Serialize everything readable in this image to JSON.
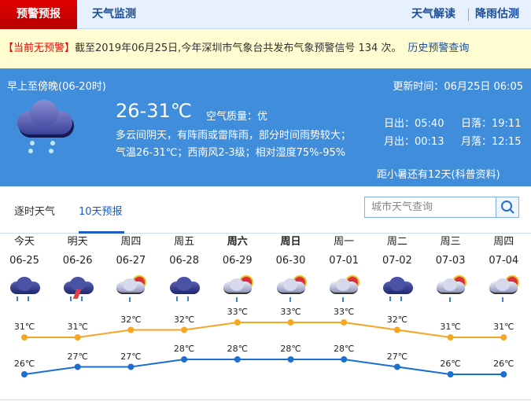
{
  "topbar": {
    "tab_active": "预警预报",
    "tab2": "天气监测",
    "link1": "天气解读",
    "link2": "降雨估测"
  },
  "warning": {
    "status": "【当前无预警】",
    "text": "截至2019年06月25日,今年深圳市气象台共发布气象预警信号 134 次。",
    "history_link": "历史预警查询"
  },
  "current": {
    "period": "早上至傍晚(06-20时)",
    "updated": "更新时间：06月25日 06:05",
    "temp": "26-31℃",
    "air_quality": "空气质量：优",
    "desc1": "多云间阴天，有阵雨或雷阵雨，部分时间雨势较大；",
    "desc2": "气温26-31℃；西南风2-3级；相对湿度75%-95%",
    "sunrise": "日出：05:40",
    "sunset": "日落：19:11",
    "moonrise": "月出：00:13",
    "moonset": "月落：12:15",
    "solar_term": "距小暑还有12天(科普资料)",
    "icon": "rain-cloud-icon"
  },
  "tabs": [
    {
      "label": "逐时天气"
    },
    {
      "label": "10天预报",
      "active": true
    }
  ],
  "search": {
    "placeholder": "城市天气查询",
    "icon": "search-icon"
  },
  "colors": {
    "high": "#f5a623",
    "low": "#1a6fd0",
    "panel": "#3f8ddb",
    "warn_red": "#e00000"
  },
  "forecast": [
    {
      "day": "今天",
      "date": "06-25",
      "icon": "rain",
      "high": "31℃",
      "low": "26℃",
      "hv": 31,
      "lv": 26
    },
    {
      "day": "明天",
      "date": "06-26",
      "icon": "thunder",
      "high": "31℃",
      "low": "27℃",
      "hv": 31,
      "lv": 27
    },
    {
      "day": "周四",
      "date": "06-27",
      "icon": "partly-rain",
      "high": "32℃",
      "low": "27℃",
      "hv": 32,
      "lv": 27
    },
    {
      "day": "周五",
      "date": "06-28",
      "icon": "rain",
      "high": "32℃",
      "low": "28℃",
      "hv": 32,
      "lv": 28
    },
    {
      "day": "周六",
      "date": "06-29",
      "icon": "partly-rain",
      "high": "33℃",
      "low": "28℃",
      "hv": 33,
      "lv": 28,
      "bold": true
    },
    {
      "day": "周日",
      "date": "06-30",
      "icon": "partly-rain",
      "high": "33℃",
      "low": "28℃",
      "hv": 33,
      "lv": 28,
      "bold": true
    },
    {
      "day": "周一",
      "date": "07-01",
      "icon": "partly-rain",
      "high": "33℃",
      "low": "28℃",
      "hv": 33,
      "lv": 28
    },
    {
      "day": "周二",
      "date": "07-02",
      "icon": "rain",
      "high": "32℃",
      "low": "27℃",
      "hv": 32,
      "lv": 27
    },
    {
      "day": "周三",
      "date": "07-03",
      "icon": "partly-rain",
      "high": "31℃",
      "low": "26℃",
      "hv": 31,
      "lv": 26
    },
    {
      "day": "周四",
      "date": "07-04",
      "icon": "partly-rain",
      "high": "31℃",
      "low": "26℃",
      "hv": 31,
      "lv": 26
    }
  ]
}
